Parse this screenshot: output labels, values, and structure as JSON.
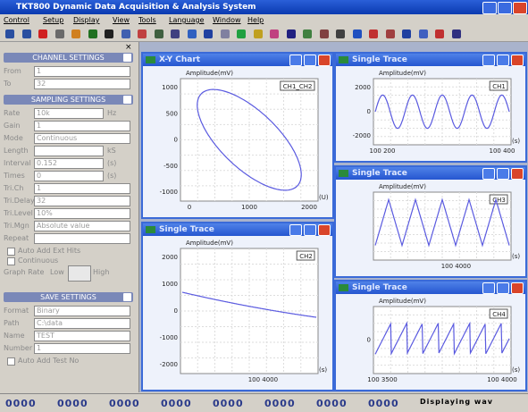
{
  "title": "TKT800 Dynamic Data Acquisition & Analysis System",
  "menu": [
    "Control",
    "Setup",
    "Display",
    "View",
    "Tools",
    "Language",
    "Window",
    "Help"
  ],
  "panel": {
    "channel": {
      "heading": "CHANNEL SETTINGS",
      "fields": [
        {
          "label": "From",
          "value": "1"
        },
        {
          "label": "To",
          "value": "32"
        }
      ]
    },
    "sampling": {
      "heading": "SAMPLING SETTINGS",
      "fields": [
        {
          "label": "Rate",
          "value": "10k",
          "unit": "Hz"
        },
        {
          "label": "Gain",
          "value": "1"
        },
        {
          "label": "Mode",
          "value": "Continuous"
        },
        {
          "label": "Length",
          "value": "",
          "unit": "kS"
        },
        {
          "label": "Interval",
          "value": "0.152",
          "unit": "(s)"
        },
        {
          "label": "Times",
          "value": "0",
          "unit": "(s)"
        },
        {
          "label": "Tri.Ch",
          "value": "1"
        },
        {
          "label": "Tri.Delay",
          "value": "32"
        },
        {
          "label": "Tri.Level",
          "value": "10%"
        },
        {
          "label": "Tri.Mgn",
          "value": "Absolute value"
        },
        {
          "label": "Repeat",
          "value": ""
        }
      ]
    },
    "options": [
      "Auto Add Ext Hits",
      "Continuous"
    ],
    "graph_rate": {
      "label": "Graph Rate",
      "low": "Low",
      "high": "High"
    },
    "save": {
      "heading": "SAVE SETTINGS",
      "fields": [
        {
          "label": "Format",
          "value": "Binary"
        },
        {
          "label": "Path",
          "value": "C:\\data"
        },
        {
          "label": "Name",
          "value": "TEST"
        },
        {
          "label": "Number",
          "value": "1"
        }
      ],
      "option": "Auto Add Test No"
    }
  },
  "windows": [
    {
      "title": "X-Y Chart",
      "channel": "CH1_CH2",
      "ylabel": "Amplitude(mV)",
      "yticks": [
        "1000",
        "500",
        "0",
        "-500",
        "-1000"
      ],
      "xticks": [
        "0",
        "1000",
        "2000"
      ],
      "unit": "(U)"
    },
    {
      "title": "Single Trace",
      "channel": "CH2",
      "ylabel": "Amplitude(mV)",
      "yticks": [
        "2000",
        "1000",
        "0",
        "-1000",
        "-2000"
      ],
      "xticks": [
        "100 4000"
      ],
      "unit": "(s)"
    },
    {
      "title": "Single Trace",
      "channel": "CH1",
      "ylabel": "Amplitude(mV)",
      "yticks": [
        "2000",
        "0",
        "-2000"
      ],
      "xticks": [
        "100 200",
        "100 400"
      ],
      "unit": "(s)"
    },
    {
      "title": "Single Trace",
      "channel": "CH3",
      "ylabel": "Amplitude(mV)",
      "yticks": [],
      "xticks": [
        "100 4000"
      ],
      "unit": "(s)"
    },
    {
      "title": "Single Trace",
      "channel": "CH4",
      "ylabel": "Amplitude(mV)",
      "yticks": [
        "0"
      ],
      "xticks": [
        "100 3500",
        "100 4000"
      ],
      "unit": "(s)"
    }
  ],
  "status": [
    "0000",
    "0000",
    "0000",
    "0000",
    "0000",
    "0000",
    "0000",
    "0000",
    "Displaying wav"
  ]
}
